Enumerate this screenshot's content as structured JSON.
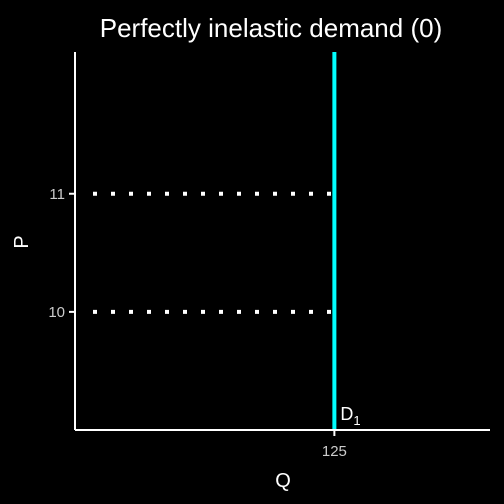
{
  "chart_data": {
    "type": "line",
    "title": "Perfectly inelastic demand (0)",
    "xlabel": "Q",
    "ylabel": "P",
    "xlim": [
      0,
      200
    ],
    "ylim": [
      9,
      12.2
    ],
    "x_ticks": [
      125
    ],
    "x_tick_labels": [
      "125"
    ],
    "y_ticks": [
      10,
      11
    ],
    "y_tick_labels": [
      "10",
      "11"
    ],
    "grid": false,
    "series": [
      {
        "curve_label": "D",
        "curve_label_subscript": "1",
        "color": "#00ffff",
        "x": [
          125,
          125
        ],
        "y": [
          9,
          12.2
        ]
      }
    ],
    "reference_lines": [
      {
        "style": "dotted",
        "color": "#ffffff",
        "x": [
          0,
          125
        ],
        "y": [
          10,
          10
        ]
      },
      {
        "style": "dotted",
        "color": "#ffffff",
        "x": [
          0,
          125
        ],
        "y": [
          11,
          11
        ]
      }
    ],
    "colors": {
      "background": "#000000",
      "axis": "#ffffff",
      "tick_text": "#cccccc",
      "text": "#ffffff"
    }
  }
}
